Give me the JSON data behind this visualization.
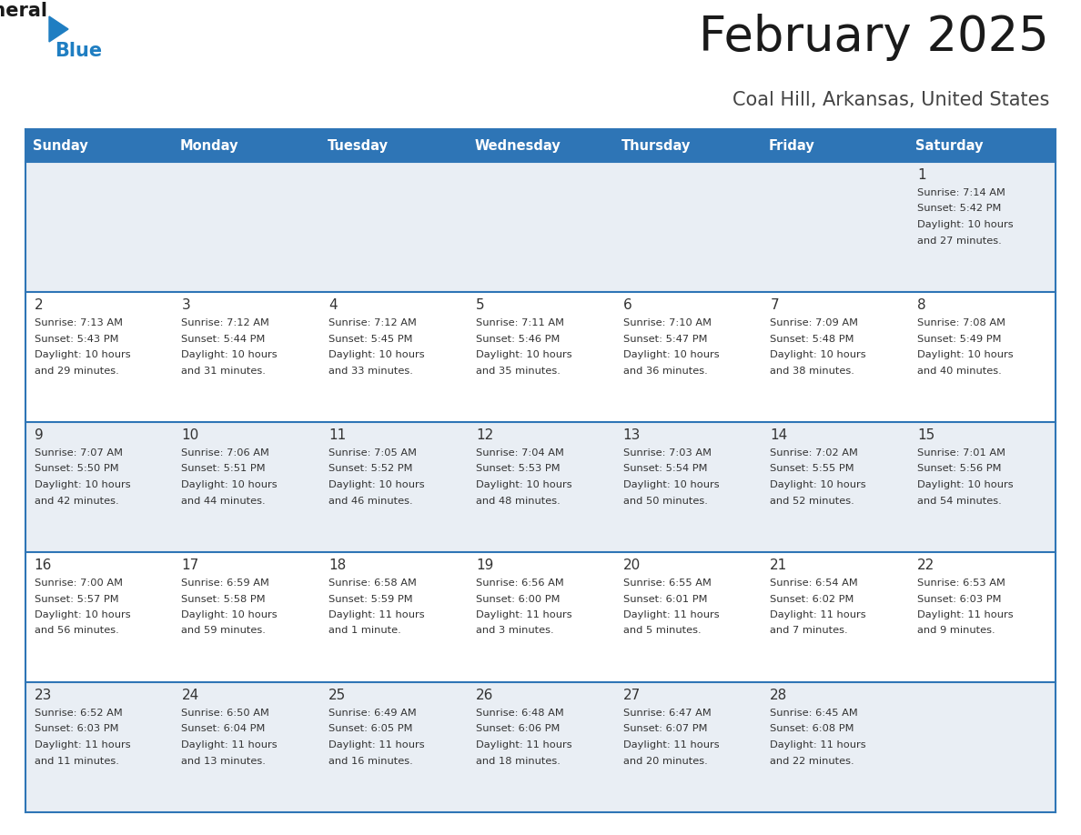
{
  "title": "February 2025",
  "subtitle": "Coal Hill, Arkansas, United States",
  "header_bg": "#2E75B6",
  "header_text_color": "#FFFFFF",
  "days_of_week": [
    "Sunday",
    "Monday",
    "Tuesday",
    "Wednesday",
    "Thursday",
    "Friday",
    "Saturday"
  ],
  "bg_color": "#FFFFFF",
  "cell_alt_color": "#E9EEF4",
  "cell_white_color": "#FFFFFF",
  "border_color": "#2E75B6",
  "text_color": "#333333",
  "title_color": "#1a1a1a",
  "subtitle_color": "#444444",
  "logo_black": "#1a1a1a",
  "logo_blue": "#1F7EC2",
  "calendar": [
    [
      null,
      null,
      null,
      null,
      null,
      null,
      {
        "day": "1",
        "sunrise": "7:14 AM",
        "sunset": "5:42 PM",
        "daylight": "10 hours and 27 minutes."
      }
    ],
    [
      {
        "day": "2",
        "sunrise": "7:13 AM",
        "sunset": "5:43 PM",
        "daylight": "10 hours and 29 minutes."
      },
      {
        "day": "3",
        "sunrise": "7:12 AM",
        "sunset": "5:44 PM",
        "daylight": "10 hours and 31 minutes."
      },
      {
        "day": "4",
        "sunrise": "7:12 AM",
        "sunset": "5:45 PM",
        "daylight": "10 hours and 33 minutes."
      },
      {
        "day": "5",
        "sunrise": "7:11 AM",
        "sunset": "5:46 PM",
        "daylight": "10 hours and 35 minutes."
      },
      {
        "day": "6",
        "sunrise": "7:10 AM",
        "sunset": "5:47 PM",
        "daylight": "10 hours and 36 minutes."
      },
      {
        "day": "7",
        "sunrise": "7:09 AM",
        "sunset": "5:48 PM",
        "daylight": "10 hours and 38 minutes."
      },
      {
        "day": "8",
        "sunrise": "7:08 AM",
        "sunset": "5:49 PM",
        "daylight": "10 hours and 40 minutes."
      }
    ],
    [
      {
        "day": "9",
        "sunrise": "7:07 AM",
        "sunset": "5:50 PM",
        "daylight": "10 hours and 42 minutes."
      },
      {
        "day": "10",
        "sunrise": "7:06 AM",
        "sunset": "5:51 PM",
        "daylight": "10 hours and 44 minutes."
      },
      {
        "day": "11",
        "sunrise": "7:05 AM",
        "sunset": "5:52 PM",
        "daylight": "10 hours and 46 minutes."
      },
      {
        "day": "12",
        "sunrise": "7:04 AM",
        "sunset": "5:53 PM",
        "daylight": "10 hours and 48 minutes."
      },
      {
        "day": "13",
        "sunrise": "7:03 AM",
        "sunset": "5:54 PM",
        "daylight": "10 hours and 50 minutes."
      },
      {
        "day": "14",
        "sunrise": "7:02 AM",
        "sunset": "5:55 PM",
        "daylight": "10 hours and 52 minutes."
      },
      {
        "day": "15",
        "sunrise": "7:01 AM",
        "sunset": "5:56 PM",
        "daylight": "10 hours and 54 minutes."
      }
    ],
    [
      {
        "day": "16",
        "sunrise": "7:00 AM",
        "sunset": "5:57 PM",
        "daylight": "10 hours and 56 minutes."
      },
      {
        "day": "17",
        "sunrise": "6:59 AM",
        "sunset": "5:58 PM",
        "daylight": "10 hours and 59 minutes."
      },
      {
        "day": "18",
        "sunrise": "6:58 AM",
        "sunset": "5:59 PM",
        "daylight": "11 hours and 1 minute."
      },
      {
        "day": "19",
        "sunrise": "6:56 AM",
        "sunset": "6:00 PM",
        "daylight": "11 hours and 3 minutes."
      },
      {
        "day": "20",
        "sunrise": "6:55 AM",
        "sunset": "6:01 PM",
        "daylight": "11 hours and 5 minutes."
      },
      {
        "day": "21",
        "sunrise": "6:54 AM",
        "sunset": "6:02 PM",
        "daylight": "11 hours and 7 minutes."
      },
      {
        "day": "22",
        "sunrise": "6:53 AM",
        "sunset": "6:03 PM",
        "daylight": "11 hours and 9 minutes."
      }
    ],
    [
      {
        "day": "23",
        "sunrise": "6:52 AM",
        "sunset": "6:03 PM",
        "daylight": "11 hours and 11 minutes."
      },
      {
        "day": "24",
        "sunrise": "6:50 AM",
        "sunset": "6:04 PM",
        "daylight": "11 hours and 13 minutes."
      },
      {
        "day": "25",
        "sunrise": "6:49 AM",
        "sunset": "6:05 PM",
        "daylight": "11 hours and 16 minutes."
      },
      {
        "day": "26",
        "sunrise": "6:48 AM",
        "sunset": "6:06 PM",
        "daylight": "11 hours and 18 minutes."
      },
      {
        "day": "27",
        "sunrise": "6:47 AM",
        "sunset": "6:07 PM",
        "daylight": "11 hours and 20 minutes."
      },
      {
        "day": "28",
        "sunrise": "6:45 AM",
        "sunset": "6:08 PM",
        "daylight": "11 hours and 22 minutes."
      },
      null
    ]
  ],
  "fig_width": 11.88,
  "fig_height": 9.18,
  "dpi": 100
}
